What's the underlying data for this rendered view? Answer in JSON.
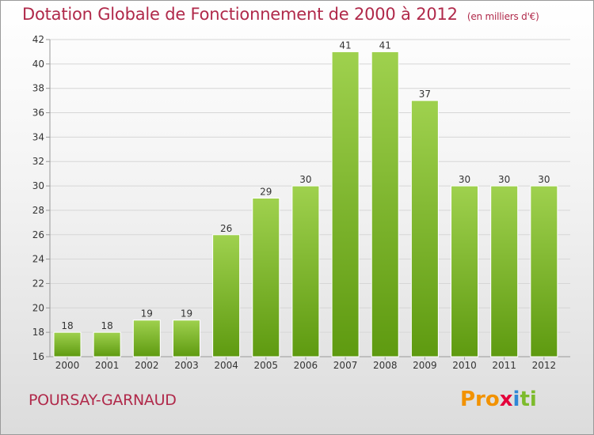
{
  "title": "Dotation Globale de Fonctionnement de 2000 à 2012",
  "unit_note": "(en milliers d'€)",
  "commune": "POURSAY-GARNAUD",
  "logo": [
    "Pro",
    "x",
    "i",
    "ti"
  ],
  "colors": {
    "title": "#b0294a",
    "bar_light": "#9fd14e",
    "bar_dark": "#5e9a10",
    "grid": "#d6d6d6"
  },
  "chart_data": {
    "type": "bar",
    "categories": [
      "2000",
      "2001",
      "2002",
      "2003",
      "2004",
      "2005",
      "2006",
      "2007",
      "2008",
      "2009",
      "2010",
      "2011",
      "2012"
    ],
    "values": [
      18,
      18,
      19,
      19,
      26,
      29,
      30,
      41,
      41,
      37,
      30,
      30,
      30
    ],
    "ylim": [
      16,
      42
    ],
    "yticks": [
      16,
      18,
      20,
      22,
      24,
      26,
      28,
      30,
      32,
      34,
      36,
      38,
      40,
      42
    ],
    "grid": true,
    "xlabel": "",
    "ylabel": ""
  }
}
